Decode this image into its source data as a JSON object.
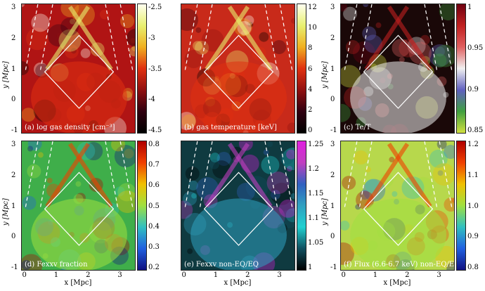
{
  "chart_data": [
    {
      "type": "heatmap",
      "panel": "a",
      "caption": "(a) log gas density [cm⁻³]",
      "colorbar": {
        "ticks": [
          "-2.5",
          "-3",
          "-3.5",
          "-4",
          "-4.5"
        ],
        "range": [
          -4.5,
          -2.5
        ],
        "colormap": "hot"
      },
      "xlim": [
        -0.1,
        3.5
      ],
      "ylim": [
        -1,
        3
      ],
      "yticks": [
        "3",
        "2",
        "1",
        "0",
        "-1"
      ],
      "ylabel": "y [Mpc]",
      "background": "#b01414"
    },
    {
      "type": "heatmap",
      "panel": "b",
      "caption": "(b) gas temperature [keV]",
      "colorbar": {
        "ticks": [
          "12",
          "10",
          "8",
          "6",
          "4",
          "2",
          "0"
        ],
        "range": [
          0,
          12
        ],
        "colormap": "hot"
      },
      "xlim": [
        -0.1,
        3.5
      ],
      "ylim": [
        -1,
        3
      ],
      "background": "#c82a1a"
    },
    {
      "type": "heatmap",
      "panel": "c",
      "caption": "(c) Te/T",
      "colorbar": {
        "ticks": [
          "1",
          "0.95",
          "0.9",
          "0.85"
        ],
        "range": [
          0.85,
          1
        ],
        "colormap": "diverging"
      },
      "xlim": [
        -0.1,
        3.5
      ],
      "ylim": [
        -1,
        3
      ],
      "yticks": [
        "3",
        "2",
        "1",
        "0",
        "-1"
      ],
      "ylabel": "y [Mpc]",
      "background": "#1a0808"
    },
    {
      "type": "heatmap",
      "panel": "d",
      "caption": "(d) Fexxv fraction",
      "colorbar": {
        "ticks": [
          "0.8",
          "0.7",
          "0.6",
          "0.5",
          "0.4",
          "0.3",
          "0.2"
        ],
        "range": [
          0.2,
          0.8
        ],
        "colormap": "jet"
      },
      "xlim": [
        -0.1,
        3.5
      ],
      "ylim": [
        -1,
        3
      ],
      "xticks": [
        "0",
        "1",
        "2",
        "3"
      ],
      "yticks": [
        "3",
        "2",
        "1",
        "0",
        "-1"
      ],
      "xlabel": "x [Mpc]",
      "ylabel": "y [Mpc]",
      "background": "#3fae4a"
    },
    {
      "type": "heatmap",
      "panel": "e",
      "caption": "(e) Fexxv non-EQ/EQ",
      "colorbar": {
        "ticks": [
          "1.25",
          "1.2",
          "1.15",
          "1.1",
          "1.05",
          "1"
        ],
        "range": [
          1,
          1.25
        ],
        "colormap": "cyan"
      },
      "xlim": [
        -0.1,
        3.5
      ],
      "ylim": [
        -1,
        3
      ],
      "xticks": [
        "0",
        "1",
        "2",
        "3"
      ],
      "xlabel": "x [Mpc]",
      "background": "#0f3a40"
    },
    {
      "type": "heatmap",
      "panel": "f",
      "caption": "(f) Flux (6.6-6.7 keV) non-EQ/EQ",
      "colorbar": {
        "ticks": [
          "1.2",
          "1.1",
          "1.0",
          "0.9",
          "0.8"
        ],
        "range": [
          0.8,
          1.2
        ],
        "colormap": "jet"
      },
      "xlim": [
        -0.1,
        3.5
      ],
      "ylim": [
        -1,
        3
      ],
      "xticks": [
        "0",
        "1",
        "2",
        "3"
      ],
      "yticks": [
        "3",
        "2",
        "1",
        "0",
        "-1"
      ],
      "xlabel": "x [Mpc]",
      "ylabel": "y [Mpc]",
      "background": "#b7d84c"
    }
  ]
}
